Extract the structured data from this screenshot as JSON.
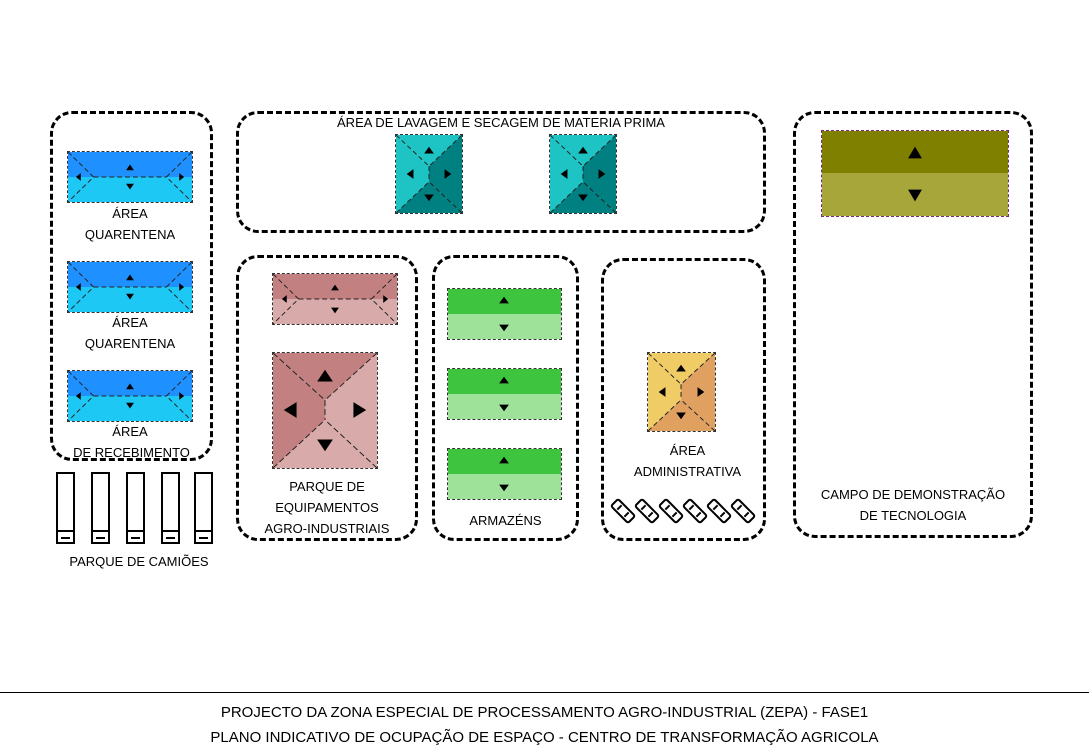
{
  "zones": {
    "quarantine_col": {
      "label_area_1": "ÁREA",
      "label_q_1": "QUARENTENA",
      "label_area_2": "ÁREA",
      "label_q_2": "QUARENTENA",
      "label_area_3": "ÁREA",
      "label_recv": "DE RECEBIMENTO"
    },
    "trucks": {
      "label": "PARQUE DE CAMIÕES"
    },
    "washing": {
      "title": "ÁREA DE LAVAGEM E SECAGEM DE MATERIA PRIMA"
    },
    "equipment": {
      "line1": "PARQUE DE",
      "line2": "EQUIPAMENTOS",
      "line3": "AGRO-INDUSTRIAIS"
    },
    "warehouses": {
      "label": "ARMAZÉNS"
    },
    "admin": {
      "line1": "ÁREA",
      "line2": "ADMINISTRATIVA"
    },
    "demo": {
      "line1": "CAMPO DE DEMONSTRAÇÃO",
      "line2": "DE TECNOLOGIA"
    }
  },
  "footer": {
    "line1": "PROJECTO DA ZONA ESPECIAL DE PROCESSAMENTO AGRO-INDUSTRIAL (ZEPA) - FASE1",
    "line2": "PLANO INDICATIVO DE OCUPAÇÃO DE ESPAÇO - CENTRO DE TRANSFORMAÇÃO AGRICOLA"
  },
  "colors": {
    "quarantine_dark": "#1e90ff",
    "quarantine_light": "#1ec8f5",
    "washing_dark": "#008080",
    "washing_light": "#1ec4c4",
    "equipment_dark": "#c28080",
    "equipment_light": "#d9aaaa",
    "warehouse_dark": "#3ec43e",
    "warehouse_light": "#9ee29a",
    "admin_dark": "#e0a060",
    "admin_light": "#f0cc66",
    "demo_dark": "#808000",
    "demo_light": "#a6a63a"
  }
}
